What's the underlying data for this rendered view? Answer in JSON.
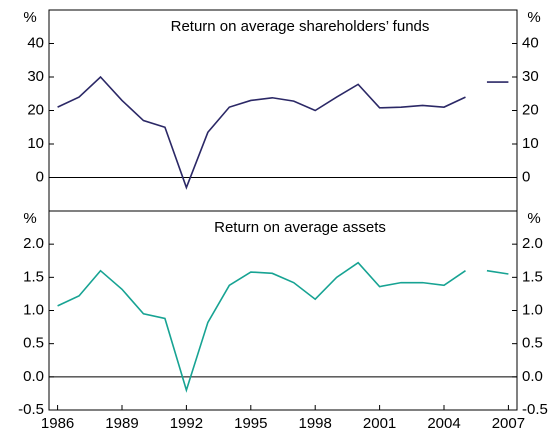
{
  "chart_data": [
    {
      "type": "line",
      "title": "Return on average shareholders’ funds",
      "y_unit": "%",
      "xlim": [
        1985.6,
        2007.4
      ],
      "ylim": [
        -10,
        50
      ],
      "yticks": [
        0,
        10,
        20,
        30,
        40
      ],
      "series": [
        {
          "color": "#2b2866",
          "x": [
            1986,
            1987,
            1988,
            1989,
            1990,
            1991,
            1992,
            1993,
            1994,
            1995,
            1996,
            1997,
            1998,
            1999,
            2000,
            2001,
            2002,
            2003,
            2004,
            2005
          ],
          "values": [
            21,
            24,
            30,
            23,
            17,
            15,
            -3,
            13.5,
            21,
            23,
            23.8,
            22.8,
            20,
            24,
            27.8,
            20.8,
            21,
            21.5,
            21,
            24
          ]
        },
        {
          "color": "#2b2866",
          "x": [
            2006,
            2007
          ],
          "values": [
            28.5,
            28.5
          ]
        }
      ]
    },
    {
      "type": "line",
      "title": "Return on average assets",
      "y_unit": "%",
      "xlim": [
        1985.6,
        2007.4
      ],
      "xticks": [
        1986,
        1989,
        1992,
        1995,
        1998,
        2001,
        2004,
        2007
      ],
      "ylim": [
        -0.5,
        2.5
      ],
      "yticks": [
        {
          "value": -0.5,
          "label": "-0.5"
        },
        {
          "value": 0,
          "label": "0.0"
        },
        0.5,
        {
          "value": 1,
          "label": "1.0"
        },
        1.5,
        {
          "value": 2,
          "label": "2.0"
        }
      ],
      "series": [
        {
          "color": "#17a393",
          "x": [
            1986,
            1987,
            1988,
            1989,
            1990,
            1991,
            1992,
            1993,
            1994,
            1995,
            1996,
            1997,
            1998,
            1999,
            2000,
            2001,
            2002,
            2003,
            2004,
            2005
          ],
          "values": [
            1.07,
            1.22,
            1.6,
            1.32,
            0.95,
            0.88,
            -0.2,
            0.82,
            1.38,
            1.58,
            1.56,
            1.42,
            1.17,
            1.5,
            1.72,
            1.36,
            1.42,
            1.42,
            1.38,
            1.6
          ]
        },
        {
          "color": "#17a393",
          "x": [
            2006,
            2007
          ],
          "values": [
            1.6,
            1.55
          ]
        }
      ]
    }
  ]
}
